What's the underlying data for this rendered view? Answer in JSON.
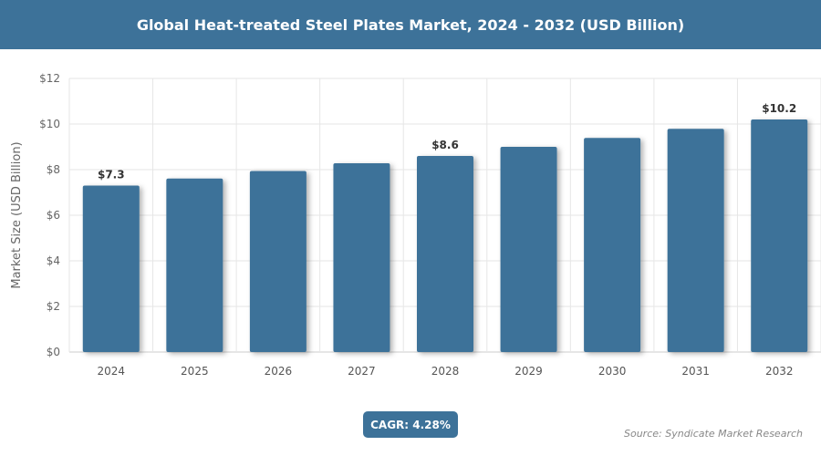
{
  "header": {
    "title": "Global Heat-treated Steel Plates Market, 2024 - 2032 (USD Billion)"
  },
  "chart_data": {
    "type": "bar",
    "title": "Global Heat-treated Steel Plates Market, 2024 - 2032 (USD Billion)",
    "xlabel": "",
    "ylabel": "Market Size (USD Billion)",
    "ylim": [
      0,
      12
    ],
    "yticks": [
      "$0",
      "$2",
      "$4",
      "$6",
      "$8",
      "$10",
      "$12"
    ],
    "categories": [
      "2024",
      "2025",
      "2026",
      "2027",
      "2028",
      "2029",
      "2030",
      "2031",
      "2032"
    ],
    "values": [
      7.3,
      7.61,
      7.94,
      8.28,
      8.6,
      9.0,
      9.39,
      9.79,
      10.2
    ],
    "data_labels": {
      "0": "$7.3",
      "4": "$8.6",
      "8": "$10.2"
    },
    "grid": true,
    "bar_color": "#3d7299"
  },
  "footer": {
    "cagr": "CAGR: 4.28%",
    "source": "Source: Syndicate Market Research"
  }
}
